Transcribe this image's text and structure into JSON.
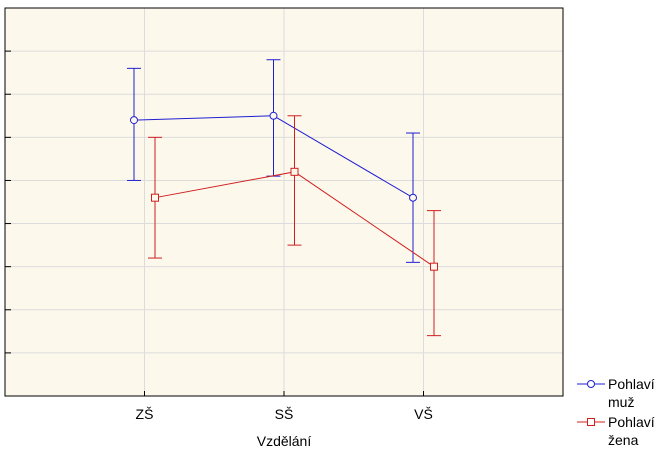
{
  "chart_data": {
    "type": "line",
    "title": "",
    "xlabel": "Vzdělání",
    "ylabel": "",
    "categories": [
      "ZŠ",
      "SŠ",
      "VŠ"
    ],
    "ylim": [
      0,
      9
    ],
    "grid": true,
    "legend_position": "bottom-right",
    "background_color": "#fdf8ec",
    "series": [
      {
        "name": "Pohlaví muž",
        "legend_lines": [
          "Pohlaví",
          "muž"
        ],
        "color": "#1f1fd0",
        "marker": "circle",
        "values": [
          6.4,
          6.5,
          4.6
        ],
        "ci_low": [
          5.0,
          5.1,
          3.1
        ],
        "ci_high": [
          7.6,
          7.8,
          6.1
        ]
      },
      {
        "name": "Pohlaví žena",
        "legend_lines": [
          "Pohlaví",
          "žena"
        ],
        "color": "#d01f1f",
        "marker": "square",
        "values": [
          4.6,
          5.2,
          3.0
        ],
        "ci_low": [
          3.2,
          3.5,
          1.4
        ],
        "ci_high": [
          6.0,
          6.5,
          4.3
        ]
      }
    ]
  }
}
